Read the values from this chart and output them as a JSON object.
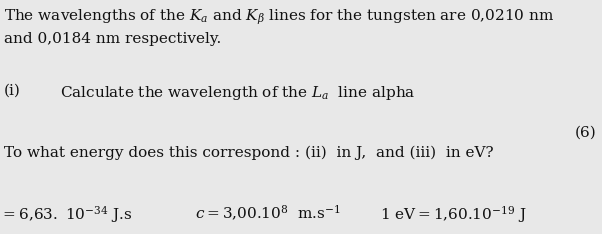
{
  "bg_color": "#e8e8e8",
  "text_color": "#111111",
  "line1": "The wavelengths of the $K_{a}$ and $K_{\\beta}$ lines for the tungsten are 0,0210 nm",
  "line2": "and 0,0184 nm respectively.",
  "line3_num": "(i)",
  "line3_text": "Calculate the wavelength of the $L_{a}$  line alpha",
  "line4_num": "(6)",
  "line5": "To what energy does this correspond : (ii)  in J,  and (iii)  in eV?",
  "line6a": "$= 6{,}63.\\ 10^{-34}$ J.s",
  "line6b": "$c = 3{,}00.10^{8}$  m.s$^{-1}$",
  "line6c": "$1\\ \\mathrm{eV} = 1{,}60.10^{-19}$ J",
  "fontsize_main": 11.0,
  "fig_width": 6.02,
  "fig_height": 2.34,
  "dpi": 100
}
